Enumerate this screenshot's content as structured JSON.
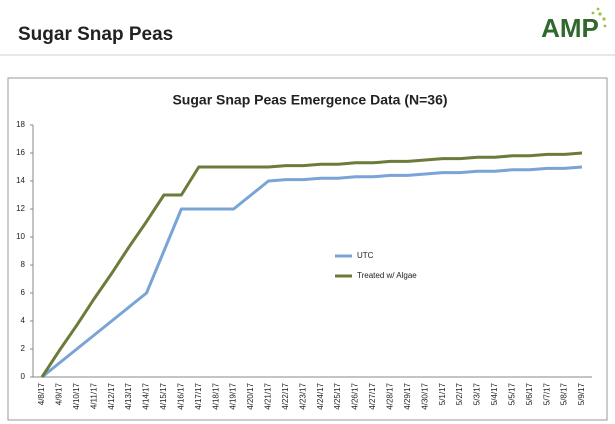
{
  "header": {
    "title": "Sugar Snap Peas",
    "logo": "AMP"
  },
  "chart_data": {
    "type": "line",
    "title": "Sugar Snap Peas Emergence Data (N=36)",
    "categories": [
      "4/8/17",
      "4/9/17",
      "4/10/17",
      "4/11/17",
      "4/12/17",
      "4/13/17",
      "4/14/17",
      "4/15/17",
      "4/16/17",
      "4/17/17",
      "4/18/17",
      "4/19/17",
      "4/20/17",
      "4/21/17",
      "4/22/17",
      "4/23/17",
      "4/24/17",
      "4/25/17",
      "4/26/17",
      "4/27/17",
      "4/28/17",
      "4/29/17",
      "4/30/17",
      "5/1/17",
      "5/2/17",
      "5/3/17",
      "5/4/17",
      "5/5/17",
      "5/6/17",
      "5/7/17",
      "5/8/17",
      "5/9/17"
    ],
    "series": [
      {
        "name": "UTC",
        "color": "#7aa3d6",
        "values": [
          0,
          1,
          2,
          3,
          4,
          5,
          6,
          9,
          12,
          12,
          12,
          12,
          13,
          14,
          14.1,
          14.1,
          14.2,
          14.2,
          14.3,
          14.3,
          14.4,
          14.4,
          14.5,
          14.6,
          14.6,
          14.7,
          14.7,
          14.8,
          14.8,
          14.9,
          14.9,
          15
        ]
      },
      {
        "name": "Treated w/ Algae",
        "color": "#6b7b3a",
        "values": [
          0,
          1.9,
          3.7,
          5.6,
          7.4,
          9.3,
          11.1,
          13,
          13,
          15,
          15,
          15,
          15,
          15,
          15.1,
          15.1,
          15.2,
          15.2,
          15.3,
          15.3,
          15.4,
          15.4,
          15.5,
          15.6,
          15.6,
          15.7,
          15.7,
          15.8,
          15.8,
          15.9,
          15.9,
          16
        ]
      }
    ],
    "ylim": [
      0,
      18
    ],
    "yticks": [
      0,
      2,
      4,
      6,
      8,
      10,
      12,
      14,
      16,
      18
    ],
    "grid": false
  }
}
